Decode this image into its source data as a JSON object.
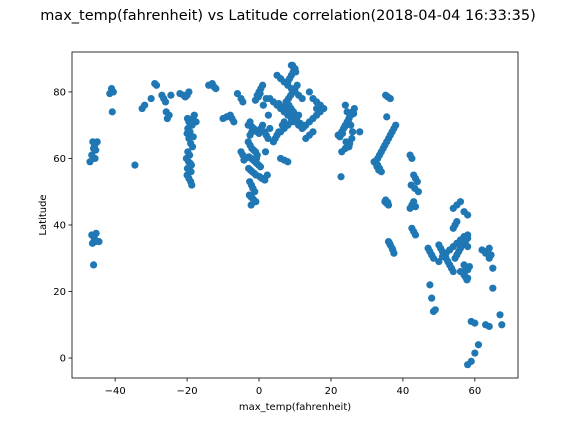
{
  "chart_data": {
    "type": "scatter",
    "title": "max_temp(fahrenheit) vs Latitude correlation(2018-04-04 16:33:35)",
    "xlabel": "max_temp(fahrenheit)",
    "ylabel": "Latitude",
    "xlim": [
      -52,
      72
    ],
    "ylim": [
      -6,
      92
    ],
    "xticks": [
      -40,
      -20,
      0,
      20,
      40,
      60
    ],
    "yticks": [
      0,
      20,
      40,
      60,
      80
    ],
    "xtick_labels": [
      "−40",
      "−20",
      "0",
      "20",
      "40",
      "60"
    ],
    "ytick_labels": [
      "0",
      "20",
      "40",
      "60",
      "80"
    ],
    "grid": false,
    "legend": "none",
    "color": "#1f77b4",
    "series": [
      {
        "x": [
          -46.5,
          -46,
          -45.8,
          -45.5,
          -45.3,
          -46,
          -45.6,
          -45.7,
          -46.2,
          -45.4,
          -41,
          -40.5,
          -41.5,
          -40.8,
          -34.5,
          -47,
          -46.5,
          -46,
          -45.5,
          -45,
          -44.5,
          -46.3,
          -32.5,
          -31.8,
          -30,
          -29,
          -28.5,
          -27,
          -26.5,
          -26,
          -25.5,
          -25,
          -25.8,
          -24.5,
          -22,
          -21,
          -20.5,
          -20,
          -19.5,
          -19,
          -18.5,
          -18,
          -17.5,
          -20,
          -19.5,
          -19,
          -18.5,
          -18.3,
          -19.8,
          -19.3,
          -20.2,
          -19.6,
          -19.1,
          -18.8,
          -19.9,
          -18.9,
          -20,
          -19.5,
          -19,
          -18.7,
          -19.8,
          -19.2,
          -18.6,
          -19.5,
          -19.9,
          -14,
          -13,
          -12.5,
          -12,
          -10,
          -9,
          -8,
          -7.5,
          -7,
          -6,
          -5,
          -4.5,
          -3,
          -2.5,
          -2,
          -1.5,
          -1,
          -0.5,
          0,
          0.5,
          1,
          1.5,
          2,
          2.5,
          3,
          -3,
          -2.5,
          -2,
          -1.5,
          -1,
          -0.5,
          -2.8,
          -2.2,
          -1.6,
          -1.1,
          -0.6,
          -0.1,
          0.4,
          -2.9,
          -2.4,
          -1.9,
          -1.3,
          -0.8,
          0.2,
          0.8,
          1.6,
          -2.6,
          -2.1,
          -1.7,
          -1.2,
          -2.7,
          -2.3,
          -1.8,
          -1.4,
          -0.9,
          -2.5,
          -2,
          -1.5,
          -2.2,
          -1.7,
          -0.7,
          1.8,
          2.3,
          -5,
          -4.5,
          -3.8,
          -4.2,
          -0.5,
          0,
          0.5,
          1,
          2,
          -1,
          -0.2,
          0.3,
          1.2,
          2.6,
          3,
          4,
          5,
          6,
          7,
          8,
          9,
          10,
          11,
          12,
          13,
          14,
          15,
          16,
          17,
          5,
          6,
          7,
          8,
          9,
          10,
          11,
          12,
          5.5,
          6.5,
          7.5,
          8.5,
          9.5,
          10.5,
          11.5,
          12.5,
          6,
          7,
          8,
          9,
          10,
          11,
          7.5,
          8.2,
          8.8,
          9.4,
          10,
          10.6,
          8,
          8.5,
          9,
          9.5,
          10,
          8.3,
          8.9,
          9.6,
          9,
          9.3,
          9.8,
          10.2,
          4,
          4.5,
          5,
          5.5,
          6.5,
          7,
          13,
          14,
          15,
          16,
          17,
          14,
          15,
          16,
          17,
          18,
          6,
          7,
          8,
          22,
          23,
          23.5,
          24,
          24.5,
          25,
          25.5,
          26,
          26.5,
          24.2,
          25.2,
          25.8,
          24,
          24.5,
          25,
          25.5,
          26,
          24.8,
          25.3,
          22.5,
          23.2,
          23.8,
          24.6,
          26.3,
          22.8,
          28,
          23,
          24,
          25,
          32,
          33,
          33.5,
          34,
          34.5,
          35,
          35.5,
          36,
          36.5,
          37,
          37.5,
          38,
          33,
          33.5,
          32.5,
          34,
          32.8,
          33.3,
          35,
          35.5,
          36,
          35.2,
          35.8,
          36,
          36.5,
          37,
          36.3,
          37.2,
          37.5,
          35.2,
          35.8,
          36.5,
          35.5,
          42,
          42.5,
          43,
          43.5,
          44,
          42.3,
          43.3,
          44.3,
          42,
          42.5,
          43,
          43.5,
          42.5,
          43,
          43.5,
          47,
          47.5,
          48,
          48.5,
          47.5,
          48,
          48.5,
          49,
          50,
          50.5,
          51,
          51.5,
          52,
          52.5,
          53,
          53.5,
          54,
          54.5,
          55,
          55.5,
          56,
          56.5,
          57,
          57.5,
          58,
          50,
          51,
          52,
          53,
          54,
          55,
          56,
          57,
          58,
          54,
          55,
          56,
          57,
          58,
          56,
          57,
          58,
          57.3,
          57.8,
          54,
          54.5,
          55,
          57,
          57.5,
          58,
          58,
          59,
          60,
          61,
          59,
          60,
          63,
          64,
          64.5,
          65,
          62,
          63,
          64,
          65,
          63,
          64,
          67,
          67.5,
          57.5,
          58,
          58.5
        ],
        "y": [
          37,
          36.5,
          36,
          35,
          37.5,
          28,
          60,
          64,
          65,
          62.5,
          81,
          80,
          79.5,
          74,
          58,
          59,
          61,
          63,
          64.5,
          65,
          35,
          34.5,
          75,
          76,
          78,
          82.5,
          82,
          79,
          78,
          77,
          72,
          73,
          74,
          79,
          79.5,
          79,
          78.5,
          79,
          80,
          70,
          72,
          73,
          71,
          67.5,
          66,
          64.5,
          63.5,
          66.5,
          62,
          61,
          60,
          59,
          58.5,
          58,
          57,
          56,
          55,
          54,
          53,
          52,
          69,
          68,
          70,
          71,
          72,
          82,
          82.5,
          81.5,
          81,
          72,
          72.5,
          73,
          72,
          71,
          79.5,
          78,
          77,
          70,
          71,
          69.5,
          69,
          68.5,
          68,
          67.5,
          69,
          70,
          68,
          67,
          66,
          69,
          65,
          64,
          63,
          62.5,
          62,
          61,
          60.5,
          60,
          59.5,
          59,
          58.5,
          58,
          57.5,
          57,
          56.5,
          56,
          55.5,
          55,
          54.5,
          54,
          53.5,
          53,
          52,
          51,
          50,
          49,
          48.5,
          48,
          47.5,
          47,
          67,
          68,
          69,
          46,
          51,
          60,
          62,
          55,
          62,
          61,
          60,
          59.5,
          79,
          80,
          81,
          82,
          78,
          77.5,
          78.5,
          79.5,
          76,
          73,
          78,
          77,
          76,
          75,
          74,
          73,
          72,
          71,
          70,
          69,
          70,
          71,
          72,
          73,
          74,
          85,
          84,
          83,
          82,
          81,
          80,
          79,
          78,
          76.5,
          75.5,
          74.5,
          73.5,
          72.5,
          71.5,
          70.5,
          69.5,
          68,
          69,
          70,
          71,
          72,
          73,
          77,
          78,
          79,
          80,
          81,
          82,
          83,
          84,
          85,
          86,
          87,
          76,
          75,
          74,
          88,
          88,
          87,
          86,
          65,
          66,
          67,
          68,
          70,
          71,
          66,
          67,
          68,
          75,
          76,
          80,
          78,
          77,
          76,
          75,
          60,
          59.5,
          59,
          67,
          68,
          69,
          70,
          71,
          72,
          73,
          74,
          75,
          65,
          64.5,
          66,
          76,
          74,
          72,
          70,
          68,
          71,
          73,
          66.5,
          67.5,
          69.5,
          70.5,
          73.5,
          54.5,
          68,
          62,
          63,
          63.5,
          59,
          60,
          61,
          62,
          63,
          64,
          65,
          66,
          67,
          68,
          69,
          70,
          58,
          57,
          58.5,
          56,
          57.5,
          56.5,
          47,
          46.5,
          46,
          47.5,
          46.8,
          35,
          34,
          33,
          34.5,
          32.5,
          31.5,
          79,
          78.5,
          78,
          72.5,
          61,
          60,
          55,
          54,
          53,
          52,
          51,
          50,
          45,
          46,
          47,
          45.5,
          39,
          38,
          37,
          33,
          32,
          31,
          30,
          22,
          18,
          14,
          14.5,
          34,
          33,
          32,
          31,
          30,
          29,
          28,
          27,
          26,
          30,
          31,
          32,
          33,
          34,
          35,
          35.5,
          36,
          29,
          30.5,
          31.5,
          32.5,
          33.5,
          34.5,
          35.5,
          36.5,
          37,
          45,
          46,
          47,
          44,
          43,
          26,
          25,
          24,
          24.5,
          23.5,
          39,
          40,
          41,
          28,
          27,
          26.5,
          -2,
          -1,
          1.5,
          4,
          11,
          10.5,
          32,
          33,
          31,
          27,
          32.5,
          31.5,
          30,
          21,
          10,
          9.5,
          13,
          10,
          34,
          33.5,
          27.5
        ]
      }
    ]
  }
}
